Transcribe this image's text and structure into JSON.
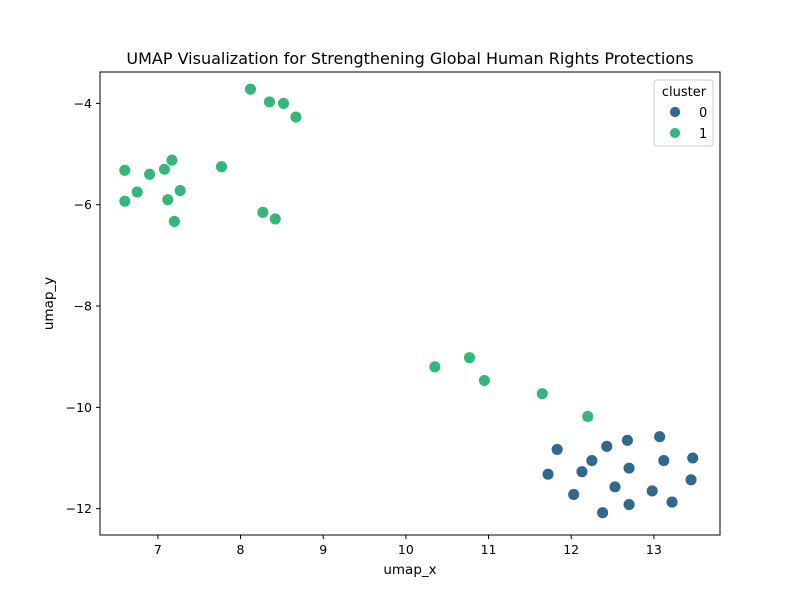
{
  "chart_data": {
    "type": "scatter",
    "title": "UMAP Visualization for Strengthening Global Human Rights Protections",
    "xlabel": "umap_x",
    "ylabel": "umap_y",
    "xlim": [
      6.3,
      13.8
    ],
    "ylim": [
      -12.52,
      -3.38
    ],
    "xticks": [
      7,
      8,
      9,
      10,
      11,
      12,
      13
    ],
    "yticks": [
      -4,
      -6,
      -8,
      -10,
      -12
    ],
    "ytick_labels": [
      "−4",
      "−6",
      "−8",
      "−10",
      "−12"
    ],
    "grid": false,
    "legend": {
      "title": "cluster",
      "position": "top-right",
      "entries": [
        {
          "label": "0",
          "color": "#30688e"
        },
        {
          "label": "1",
          "color": "#35b779"
        }
      ]
    },
    "series": [
      {
        "name": "0",
        "color": "#30688e",
        "points": [
          [
            11.83,
            -10.83
          ],
          [
            12.43,
            -10.77
          ],
          [
            12.68,
            -10.65
          ],
          [
            13.07,
            -10.58
          ],
          [
            11.72,
            -11.32
          ],
          [
            12.13,
            -11.27
          ],
          [
            12.25,
            -11.05
          ],
          [
            12.7,
            -11.2
          ],
          [
            13.12,
            -11.05
          ],
          [
            13.47,
            -11.0
          ],
          [
            12.03,
            -11.72
          ],
          [
            12.53,
            -11.57
          ],
          [
            12.98,
            -11.65
          ],
          [
            13.45,
            -11.43
          ],
          [
            12.7,
            -11.92
          ],
          [
            13.22,
            -11.87
          ],
          [
            12.38,
            -12.08
          ]
        ]
      },
      {
        "name": "1",
        "color": "#35b779",
        "points": [
          [
            8.12,
            -3.72
          ],
          [
            8.35,
            -3.97
          ],
          [
            8.52,
            -4.0
          ],
          [
            8.67,
            -4.27
          ],
          [
            6.6,
            -5.32
          ],
          [
            6.9,
            -5.4
          ],
          [
            7.08,
            -5.3
          ],
          [
            7.17,
            -5.12
          ],
          [
            7.77,
            -5.25
          ],
          [
            6.75,
            -5.75
          ],
          [
            7.27,
            -5.72
          ],
          [
            6.6,
            -5.93
          ],
          [
            7.12,
            -5.9
          ],
          [
            7.2,
            -6.33
          ],
          [
            8.27,
            -6.15
          ],
          [
            8.42,
            -6.28
          ],
          [
            10.35,
            -9.2
          ],
          [
            10.77,
            -9.02
          ],
          [
            10.95,
            -9.47
          ],
          [
            11.65,
            -9.73
          ],
          [
            12.2,
            -10.18
          ]
        ]
      }
    ]
  }
}
